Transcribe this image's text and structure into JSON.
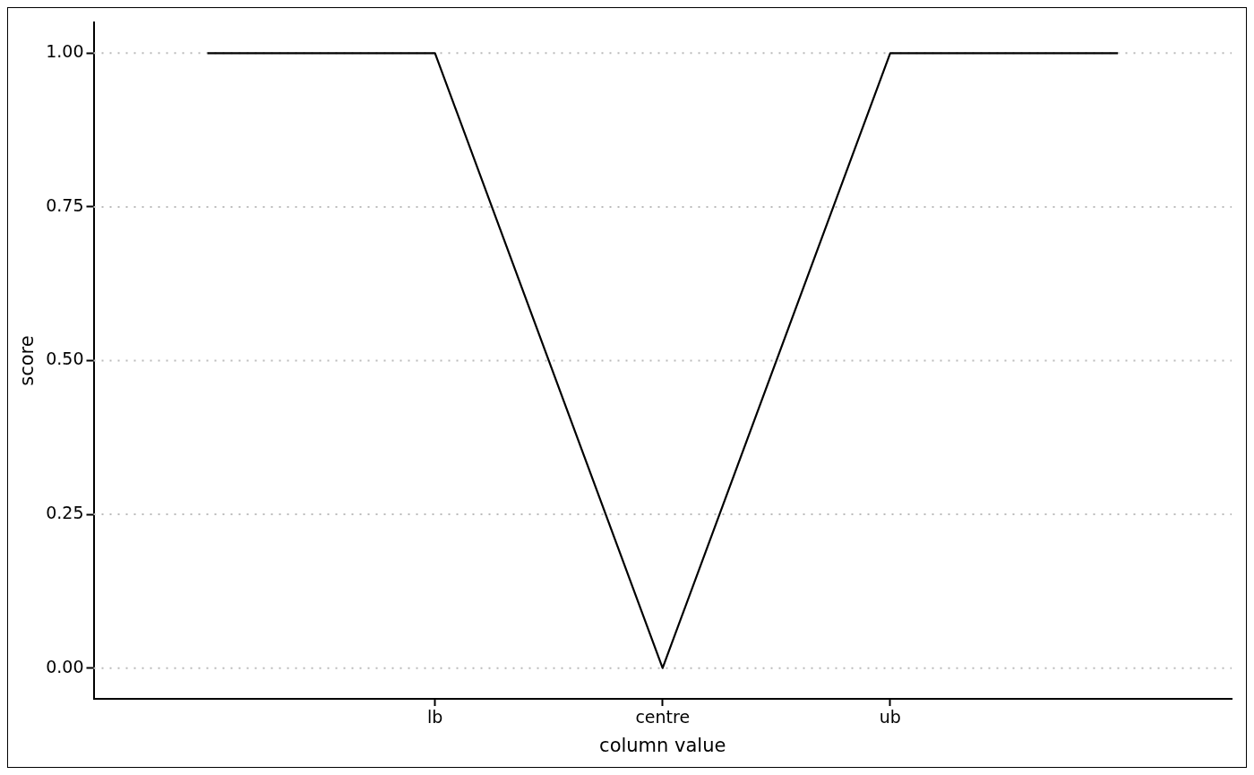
{
  "chart_data": {
    "type": "line",
    "xlabel": "column value",
    "ylabel": "score",
    "categories": [
      null,
      "lb",
      "centre",
      "ub",
      null
    ],
    "series": [
      {
        "color": "#000000",
        "values": [
          1,
          1,
          0,
          1,
          1
        ]
      }
    ],
    "ylim": [
      -0.05,
      1.05
    ],
    "yticks": [
      {
        "value": 0,
        "label": "0.00"
      },
      {
        "value": 0.25,
        "label": "0.25"
      },
      {
        "value": 0.5,
        "label": "0.50"
      },
      {
        "value": 0.75,
        "label": "0.75"
      },
      {
        "value": 1,
        "label": "1.00"
      }
    ],
    "grid": "y",
    "legend": false
  }
}
